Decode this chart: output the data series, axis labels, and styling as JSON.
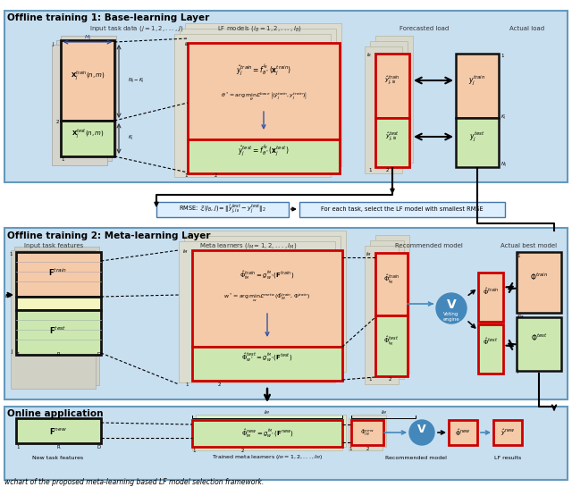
{
  "bg_color": "#ffffff",
  "section1_title": "Offline training 1: Base-learning Layer",
  "section2_title": "Offline training 2: Meta-learning Layer",
  "section3_title": "Online application",
  "section_bg": "#c8dff0",
  "section_edge": "#6699bb",
  "box_salmon": "#f5caa8",
  "box_green": "#cce8b0",
  "box_cream": "#f0ead8",
  "box_yellow": "#f5f5c0",
  "box_gray": "#d0d0c8",
  "box_lgray": "#e0e0d8",
  "box_red_border": "#cc0000",
  "box_dark_border": "#111111",
  "blue_circle": "#4488bb",
  "arrow_blue": "#4488bb",
  "rmse_bg": "#ddeeff",
  "rmse_edge": "#4477aa",
  "caption": "wchart of the proposed meta-learning based LF model selection framework."
}
